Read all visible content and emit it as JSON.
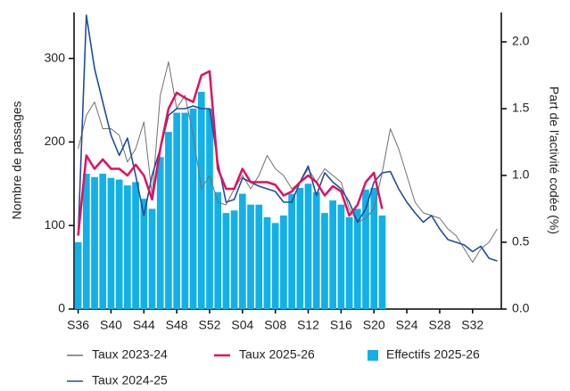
{
  "chart_data": {
    "type": "bar",
    "ylabel": "Nombre de passages",
    "y2label": "Part de l'activité codée (%)",
    "categories": [
      "S36",
      null,
      null,
      null,
      "S40",
      null,
      null,
      null,
      "S44",
      null,
      null,
      null,
      "S48",
      null,
      null,
      null,
      "S52",
      null,
      null,
      null,
      "S04",
      null,
      null,
      null,
      "S08",
      null,
      null,
      null,
      "S12",
      null,
      null,
      null,
      "S16",
      null,
      null,
      null,
      "S20",
      null,
      null,
      null,
      "S24",
      null,
      null,
      null,
      "S28",
      null,
      null,
      null,
      "S32",
      null,
      null,
      null
    ],
    "ylim": [
      0,
      355
    ],
    "yticks": [
      0,
      100,
      200,
      300
    ],
    "y2lim": [
      0,
      2.22
    ],
    "y2ticks": [
      {
        "value": 0,
        "label": "0.0"
      },
      0.5,
      {
        "value": 1,
        "label": "1.0"
      },
      1.5,
      {
        "value": 2,
        "label": "2.0"
      }
    ],
    "series": [
      {
        "name": "Taux 2023-24",
        "type": "line",
        "axis": "y2",
        "color": "#707070",
        "values": [
          1.2,
          1.45,
          1.55,
          1.35,
          1.35,
          1.3,
          1.1,
          1.2,
          1.4,
          0.85,
          1.6,
          1.85,
          1.5,
          1.6,
          1.3,
          0.9,
          1.0,
          0.8,
          0.78,
          0.9,
          1.0,
          0.9,
          1.0,
          1.15,
          1.05,
          1.0,
          0.9,
          0.95,
          1.05,
          0.95,
          1.05,
          1.0,
          0.95,
          0.75,
          0.65,
          0.68,
          0.75,
          1.02,
          1.35,
          1.2,
          1.0,
          0.8,
          0.72,
          0.7,
          0.68,
          0.6,
          0.55,
          0.45,
          0.35,
          0.45,
          0.5,
          0.6
        ]
      },
      {
        "name": "Taux 2024-25",
        "type": "line",
        "axis": "y2",
        "color": "#1f4e99",
        "values": [
          0.55,
          2.2,
          1.8,
          1.55,
          1.3,
          1.15,
          1.28,
          1.0,
          0.7,
          1.0,
          1.2,
          1.45,
          1.5,
          1.5,
          1.52,
          1.5,
          1.5,
          1.1,
          0.8,
          0.82,
          0.98,
          0.95,
          0.92,
          0.9,
          0.88,
          0.8,
          0.8,
          0.95,
          1.07,
          0.85,
          1.02,
          0.95,
          0.9,
          0.8,
          0.65,
          0.75,
          0.95,
          1.02,
          1.03,
          0.9,
          0.8,
          0.72,
          0.65,
          0.7,
          0.6,
          0.52,
          0.5,
          0.48,
          0.43,
          0.47,
          0.38,
          0.36
        ]
      },
      {
        "name": "Taux 2025-26",
        "type": "line",
        "axis": "y2",
        "color": "#e0115f",
        "values": [
          0.55,
          1.15,
          1.05,
          1.12,
          1.05,
          1.05,
          1.0,
          1.08,
          1.0,
          0.82,
          1.2,
          1.5,
          1.62,
          1.58,
          1.55,
          1.75,
          1.78,
          1.05,
          0.9,
          0.9,
          1.05,
          0.95,
          0.95,
          0.95,
          0.93,
          0.85,
          0.88,
          0.95,
          1.0,
          0.95,
          0.85,
          0.92,
          0.88,
          0.7,
          0.78,
          0.95,
          1.02,
          0.75,
          null,
          null,
          null,
          null,
          null,
          null,
          null,
          null,
          null,
          null,
          null,
          null,
          null,
          null
        ]
      },
      {
        "name": "Effectifs 2025-26",
        "type": "bar",
        "axis": "y",
        "color": "#12b0e8",
        "values": [
          80,
          162,
          158,
          162,
          157,
          155,
          148,
          152,
          132,
          120,
          182,
          212,
          235,
          235,
          240,
          260,
          240,
          140,
          115,
          118,
          138,
          125,
          125,
          110,
          103,
          112,
          138,
          145,
          150,
          140,
          115,
          130,
          125,
          110,
          120,
          143,
          145,
          112,
          null,
          null,
          null,
          null,
          null,
          null,
          null,
          null,
          null,
          null,
          null,
          null,
          null,
          null
        ]
      }
    ]
  }
}
